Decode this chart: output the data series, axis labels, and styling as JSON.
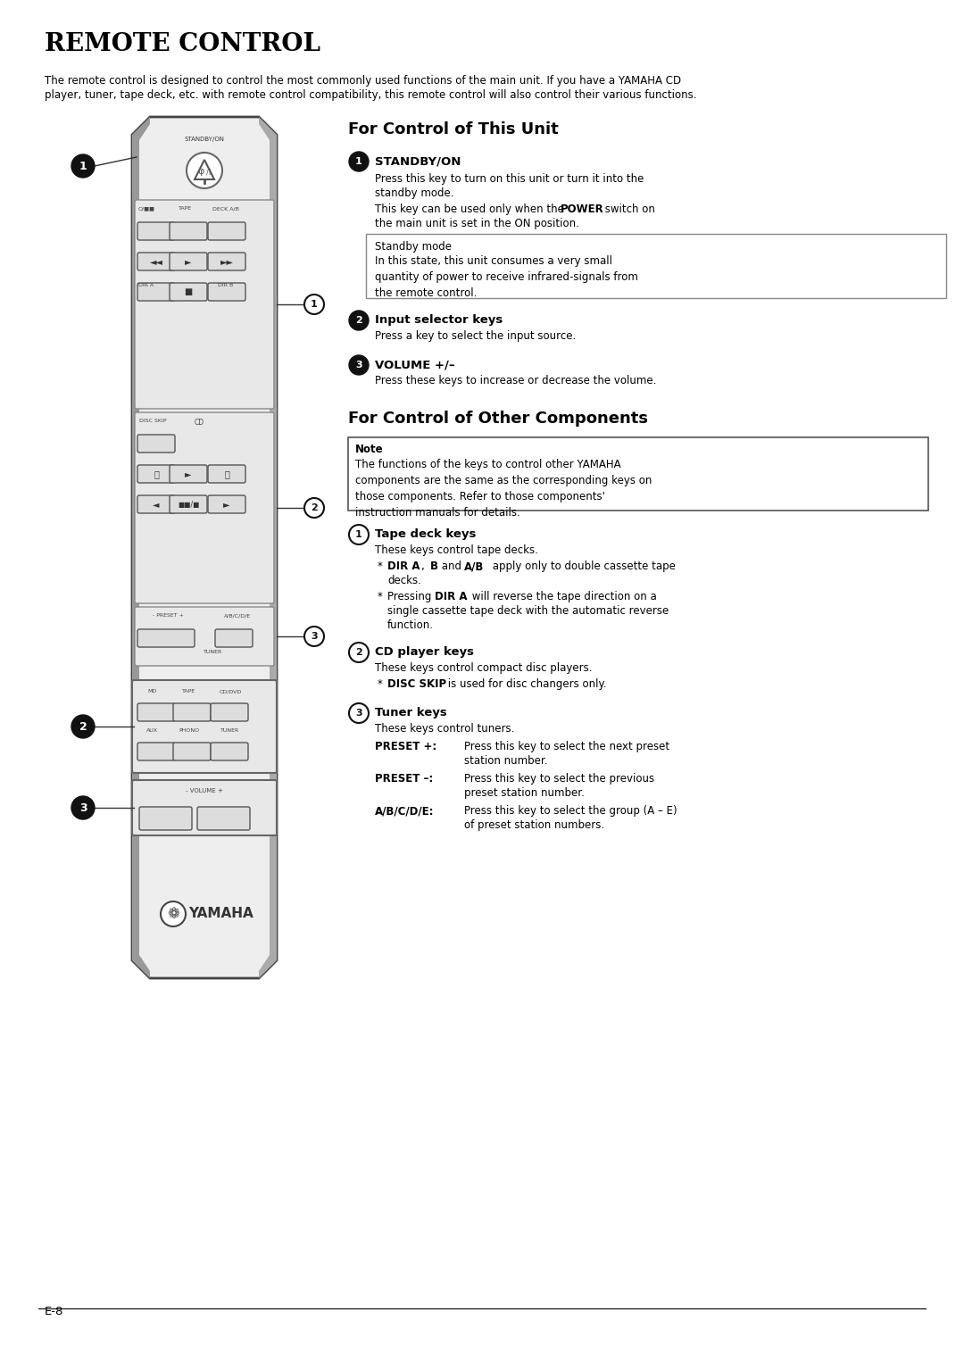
{
  "title": "REMOTE CONTROL",
  "bg_color": "#ffffff",
  "text_color": "#000000",
  "page_label": "E-8",
  "intro_line1": "The remote control is designed to control the most commonly used functions of the main unit. If you have a YAMAHA CD",
  "intro_line2": "player, tuner, tape deck, etc. with remote control compatibility, this remote control will also control their various functions.",
  "section1_title": "For Control of This Unit",
  "section2_title": "For Control of Other Components",
  "standby_box_title": "Standby mode",
  "standby_box_text": "In this state, this unit consumes a very small\nquantity of power to receive infrared-signals from\nthe remote control.",
  "note_box_title": "Note",
  "note_box_text": "The functions of the keys to control other YAMAHA\ncomponents are the same as the corresponding keys on\nthose components. Refer to those components'\ninstruction manuals for details."
}
